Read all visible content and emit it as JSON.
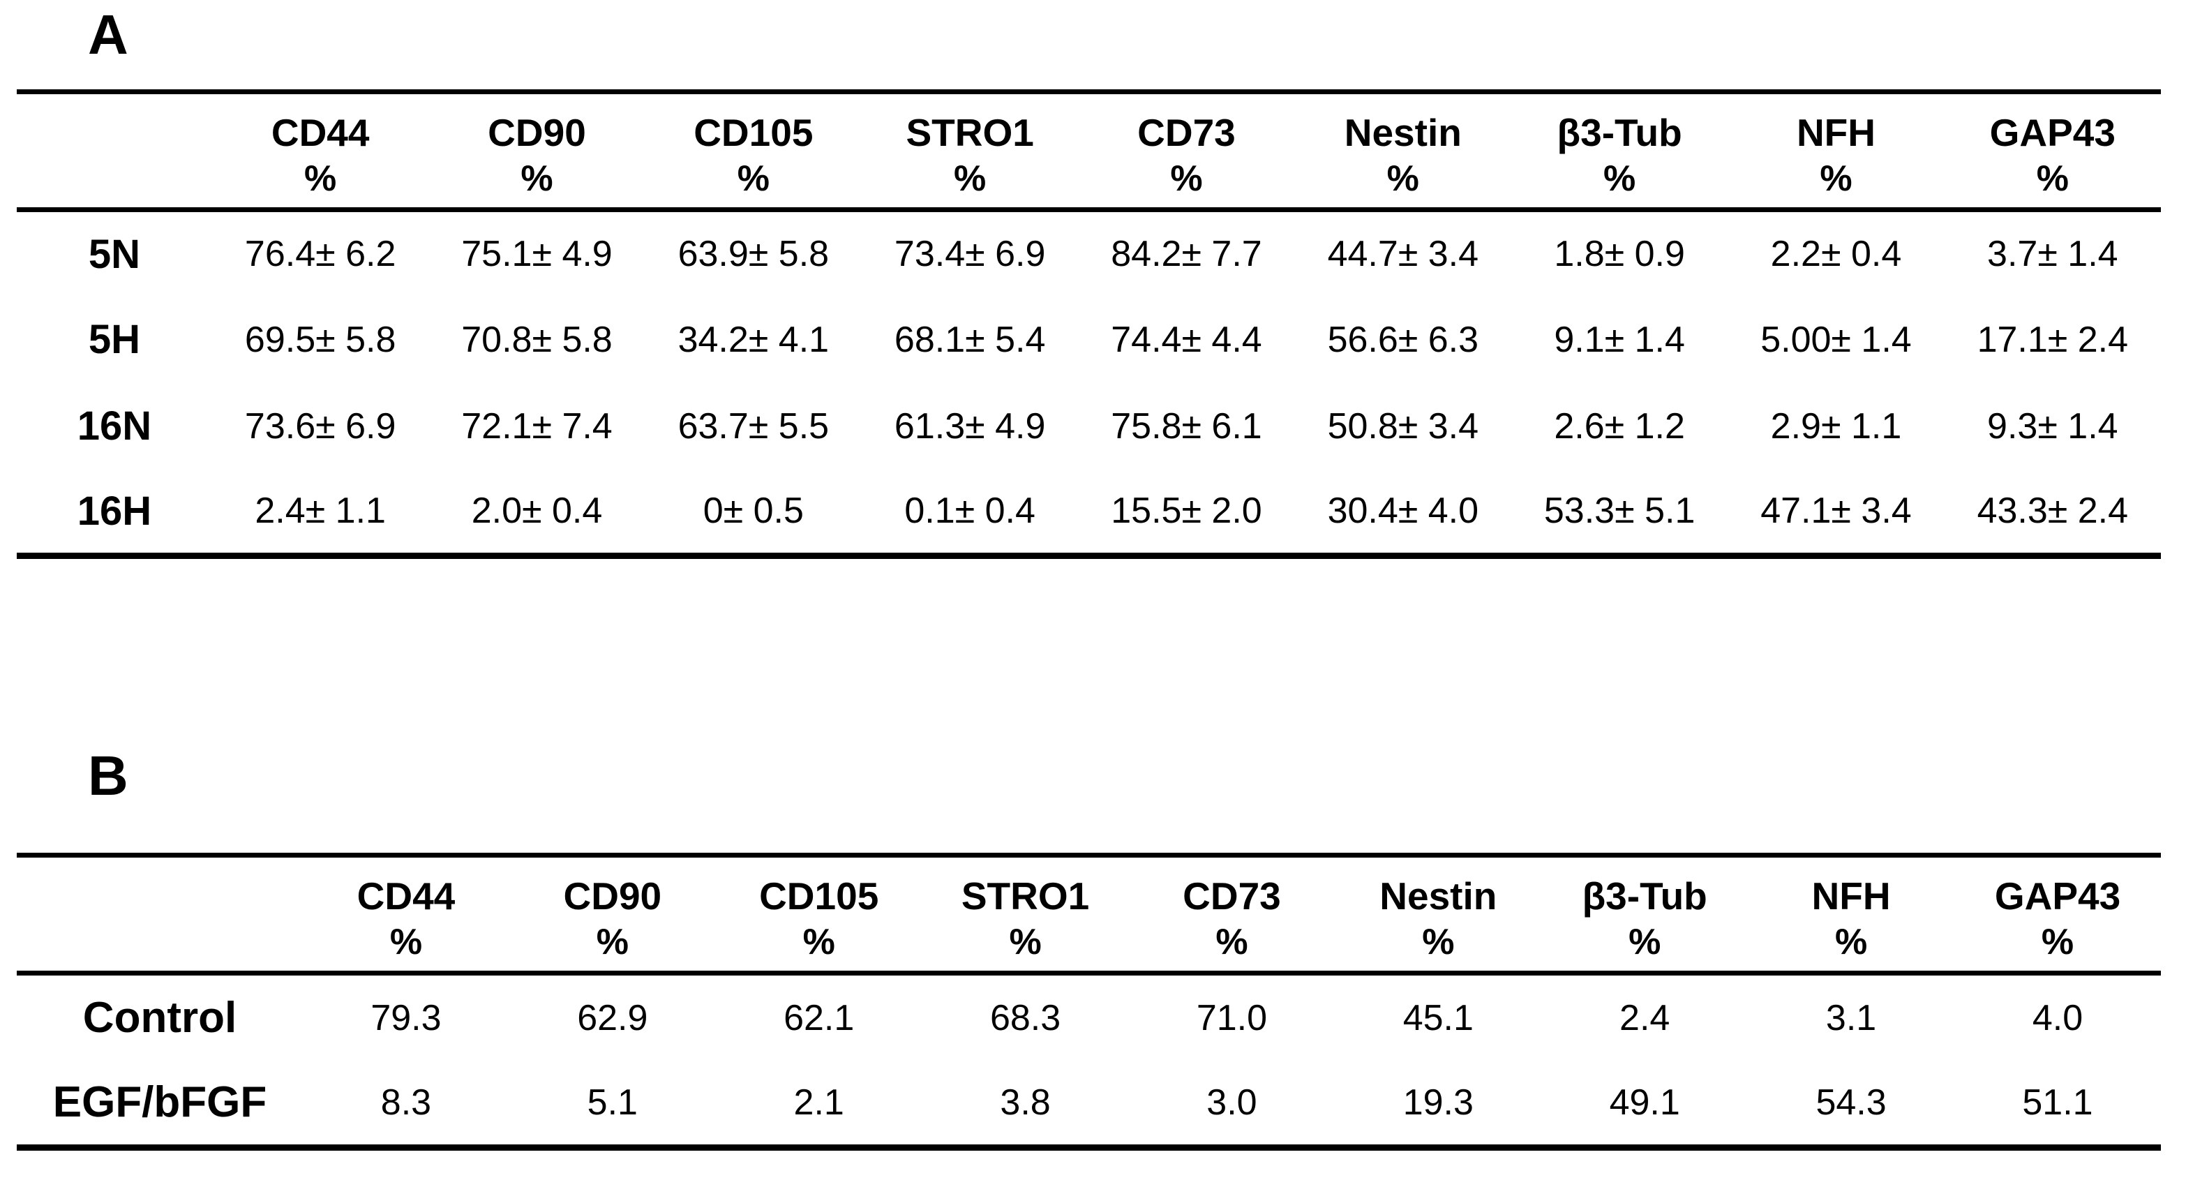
{
  "page": {
    "background_color": "#ffffff",
    "text_color": "#000000",
    "rule_color": "#000000"
  },
  "chart_data": [
    {
      "type": "table",
      "panel_label": "A",
      "legend_position": "none",
      "grid": false,
      "columns": [
        {
          "marker": "CD44",
          "unit": "%"
        },
        {
          "marker": "CD90",
          "unit": "%"
        },
        {
          "marker": "CD105",
          "unit": "%"
        },
        {
          "marker": "STRO1",
          "unit": "%"
        },
        {
          "marker": "CD73",
          "unit": "%"
        },
        {
          "marker": "Nestin",
          "unit": "%"
        },
        {
          "marker": "β3-Tub",
          "unit": "%"
        },
        {
          "marker": "NFH",
          "unit": "%"
        },
        {
          "marker": "GAP43",
          "unit": "%"
        }
      ],
      "rows": [
        {
          "label": "5N",
          "values": [
            "76.4± 6.2",
            "75.1± 4.9",
            "63.9± 5.8",
            "73.4± 6.9",
            "84.2± 7.7",
            "44.7± 3.4",
            "1.8± 0.9",
            "2.2± 0.4",
            "3.7± 1.4"
          ]
        },
        {
          "label": "5H",
          "values": [
            "69.5± 5.8",
            "70.8± 5.8",
            "34.2± 4.1",
            "68.1± 5.4",
            "74.4± 4.4",
            "56.6± 6.3",
            "9.1± 1.4",
            "5.00± 1.4",
            "17.1± 2.4"
          ]
        },
        {
          "label": "16N",
          "values": [
            "73.6± 6.9",
            "72.1± 7.4",
            "63.7± 5.5",
            "61.3± 4.9",
            "75.8± 6.1",
            "50.8± 3.4",
            "2.6± 1.2",
            "2.9± 1.1",
            "9.3± 1.4"
          ]
        },
        {
          "label": "16H",
          "values": [
            "2.4± 1.1",
            "2.0± 0.4",
            "0± 0.5",
            "0.1± 0.4",
            "15.5± 2.0",
            "30.4± 4.0",
            "53.3± 5.1",
            "47.1± 3.4",
            "43.3± 2.4"
          ]
        }
      ]
    },
    {
      "type": "table",
      "panel_label": "B",
      "legend_position": "none",
      "grid": false,
      "columns": [
        {
          "marker": "CD44",
          "unit": "%"
        },
        {
          "marker": "CD90",
          "unit": "%"
        },
        {
          "marker": "CD105",
          "unit": "%"
        },
        {
          "marker": "STRO1",
          "unit": "%"
        },
        {
          "marker": "CD73",
          "unit": "%"
        },
        {
          "marker": "Nestin",
          "unit": "%"
        },
        {
          "marker": "β3-Tub",
          "unit": "%"
        },
        {
          "marker": "NFH",
          "unit": "%"
        },
        {
          "marker": "GAP43",
          "unit": "%"
        }
      ],
      "rows": [
        {
          "label": "Control",
          "values": [
            "79.3",
            "62.9",
            "62.1",
            "68.3",
            "71.0",
            "45.1",
            "2.4",
            "3.1",
            "4.0"
          ]
        },
        {
          "label": "EGF/bFGF",
          "values": [
            "8.3",
            "5.1",
            "2.1",
            "3.8",
            "3.0",
            "19.3",
            "49.1",
            "54.3",
            "51.1"
          ]
        }
      ]
    }
  ]
}
